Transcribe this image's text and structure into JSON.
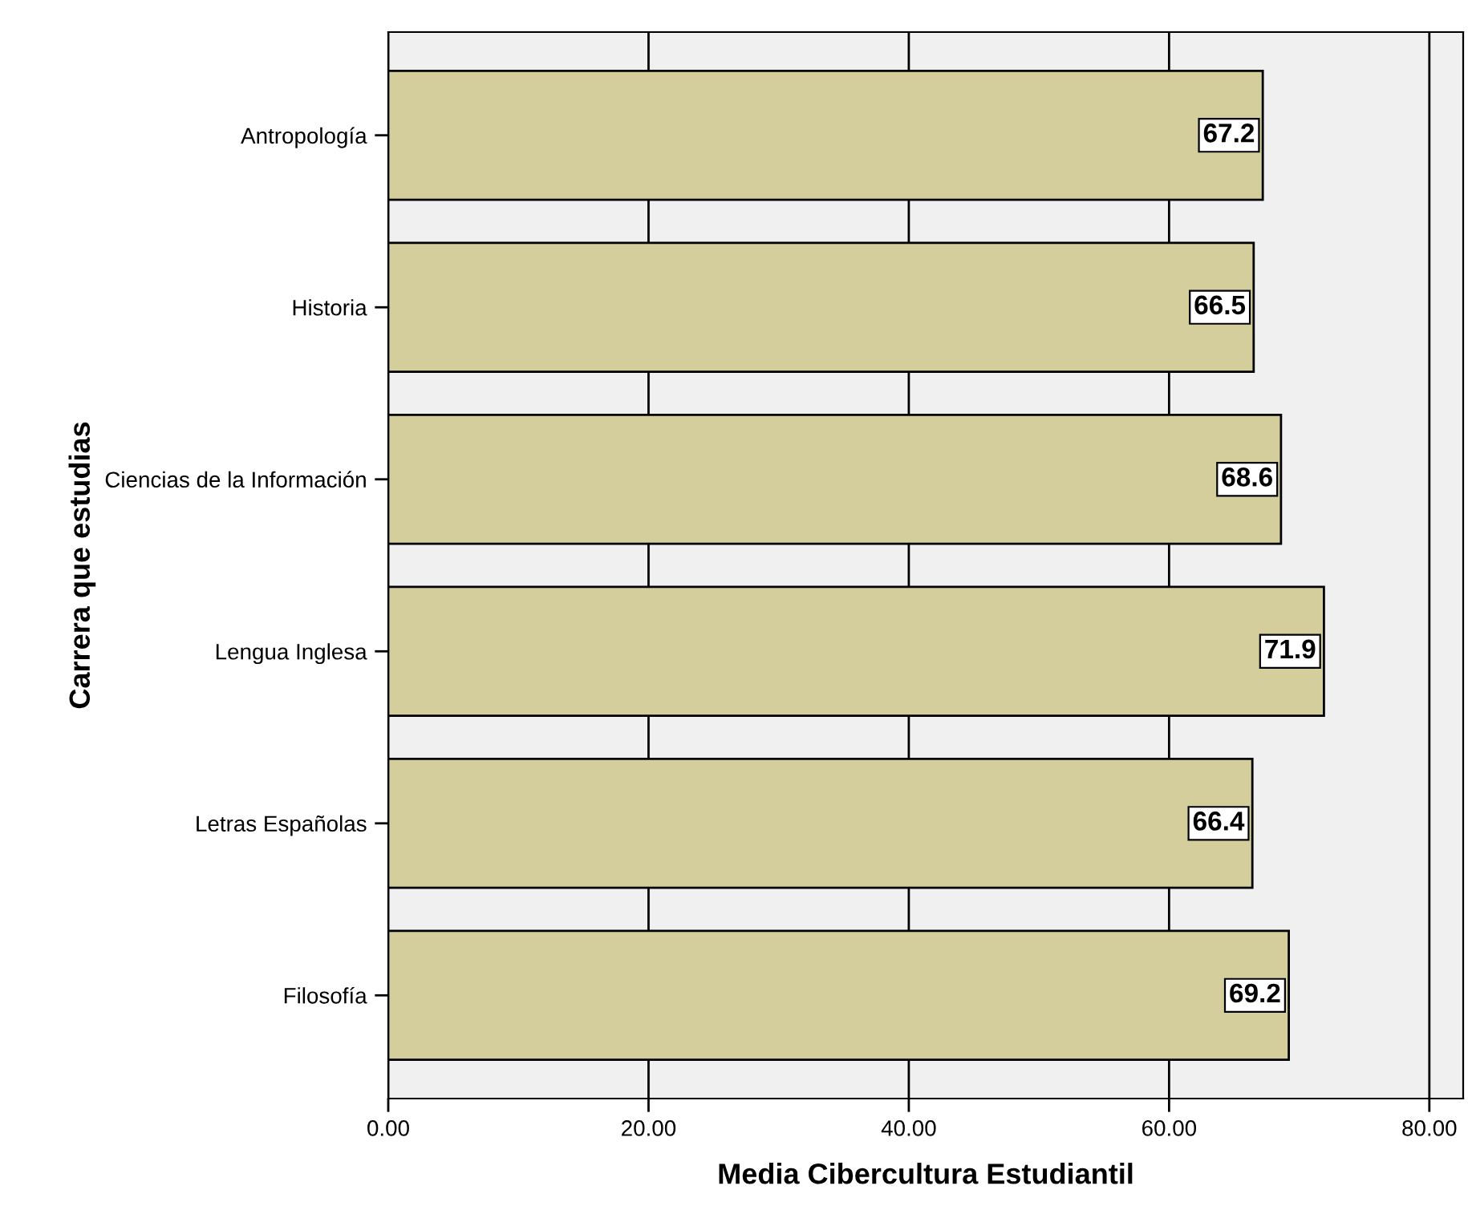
{
  "chart_data": {
    "type": "bar",
    "orientation": "horizontal",
    "xlabel": "Media Cibercultura Estudiantil",
    "ylabel": "Carrera que estudias",
    "categories": [
      "Antropología",
      "Historia",
      "Ciencias de la Información",
      "Lengua Inglesa",
      "Letras Españolas",
      "Filosofía"
    ],
    "values": [
      67.2,
      66.5,
      68.6,
      71.9,
      66.4,
      69.2
    ],
    "color": "#d3ce9b",
    "xlim": [
      0,
      82.6
    ],
    "xticks": [
      {
        "value": 0,
        "label": "0.00"
      },
      {
        "value": 20,
        "label": "20.00"
      },
      {
        "value": 40,
        "label": "40.00"
      },
      {
        "value": 60,
        "label": "60.00"
      },
      {
        "value": 80,
        "label": "80.00"
      }
    ],
    "grid": "x",
    "data_labels": true
  }
}
